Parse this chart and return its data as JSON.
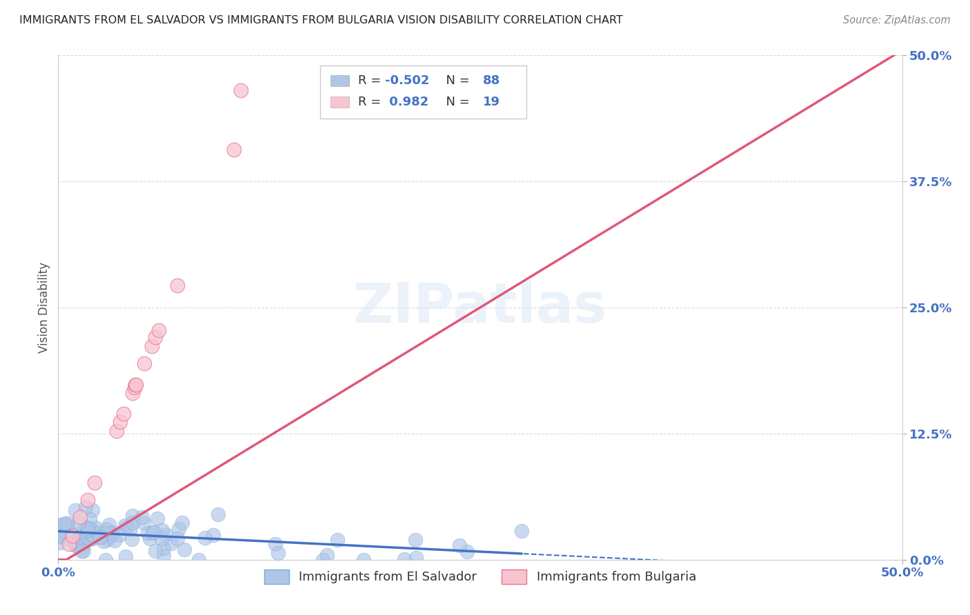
{
  "title": "IMMIGRANTS FROM EL SALVADOR VS IMMIGRANTS FROM BULGARIA VISION DISABILITY CORRELATION CHART",
  "source": "Source: ZipAtlas.com",
  "ylabel": "Vision Disability",
  "xlim": [
    0.0,
    0.5
  ],
  "ylim": [
    0.0,
    0.5
  ],
  "ytick_labels": [
    "0.0%",
    "12.5%",
    "25.0%",
    "37.5%",
    "50.0%"
  ],
  "ytick_vals": [
    0.0,
    0.125,
    0.25,
    0.375,
    0.5
  ],
  "xtick_labels": [
    "0.0%",
    "50.0%"
  ],
  "xtick_vals": [
    0.0,
    0.5
  ],
  "el_salvador_color": "#aec6e8",
  "el_salvador_edge_color": "#7aaad0",
  "el_salvador_line_color": "#4472c4",
  "bulgaria_color": "#f7c5d0",
  "bulgaria_edge_color": "#e87090",
  "bulgaria_line_color": "#e05878",
  "R_salvador": -0.502,
  "N_salvador": 88,
  "R_bulgaria": 0.982,
  "N_bulgaria": 19,
  "watermark": "ZIPatlas",
  "background_color": "#ffffff",
  "grid_color": "#d0d0d0",
  "tick_color": "#4472c4"
}
